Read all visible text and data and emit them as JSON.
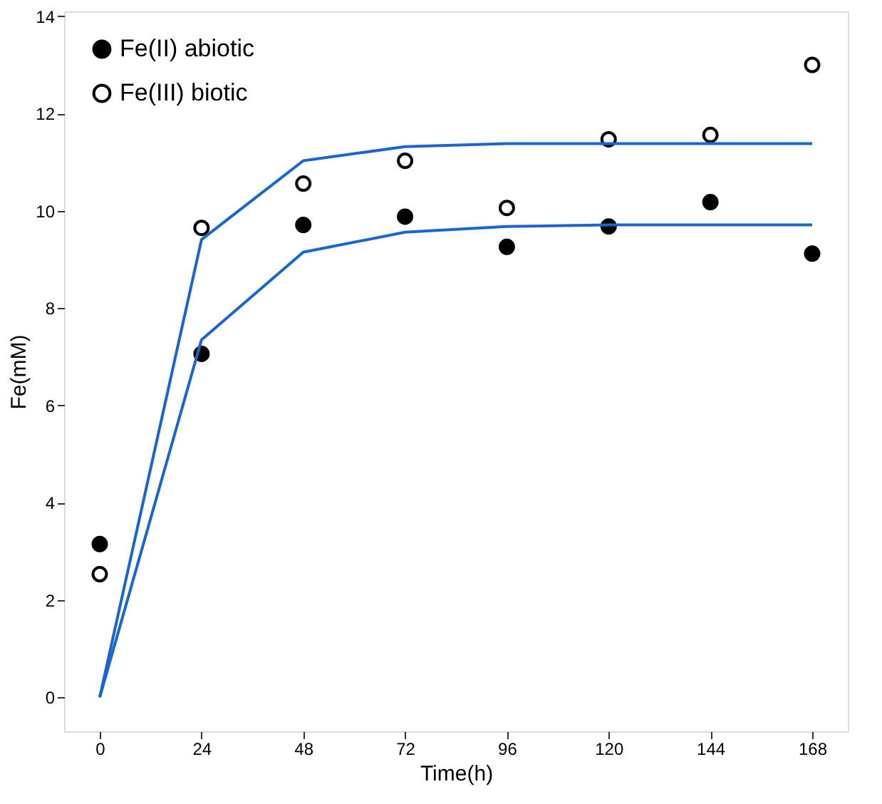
{
  "chart_data": {
    "type": "scatter",
    "xlabel": "Time(h)",
    "ylabel": "Fe(mM)",
    "x": [
      0,
      24,
      48,
      72,
      96,
      120,
      144,
      168
    ],
    "series": [
      {
        "name": "Fe(II) abiotic",
        "color": "#000000",
        "marker": "circle",
        "values": [
          3.15,
          7.06,
          9.71,
          9.88,
          9.26,
          9.68,
          10.18,
          9.12
        ]
      },
      {
        "name": "Fe(III) biotic",
        "color": "#ffffff",
        "marker": "circle",
        "values": [
          2.53,
          9.65,
          10.56,
          11.03,
          10.06,
          11.47,
          11.56,
          13.0
        ]
      },
      {
        "type": "line",
        "color": "#1a66cc",
        "marker": "none",
        "values": [
          0,
          9.41,
          11.03,
          11.32,
          11.38,
          11.38,
          11.38,
          11.38
        ]
      },
      {
        "type": "line",
        "color": "#1a66cc",
        "marker": "none",
        "values": [
          0,
          7.35,
          9.15,
          9.56,
          9.68,
          9.71,
          9.71,
          9.71
        ]
      }
    ],
    "xlim": [
      -8.4,
      176.4
    ],
    "ylim": [
      -0.7,
      14.1
    ],
    "xticks": [
      0,
      24,
      48,
      72,
      96,
      120,
      144,
      168
    ],
    "yticks": [
      0,
      2,
      4,
      6,
      8,
      10,
      12,
      14
    ],
    "grid": false,
    "legend": "top left"
  }
}
